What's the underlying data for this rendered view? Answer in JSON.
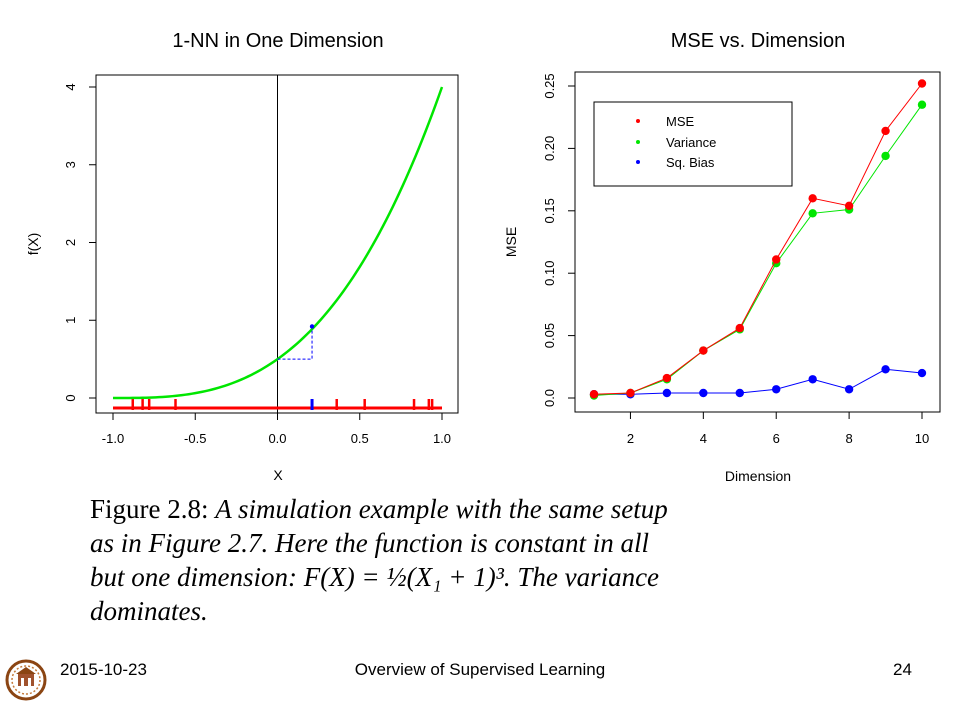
{
  "chart_data": [
    {
      "type": "line",
      "title": "1-NN in One Dimension",
      "xlabel": "X",
      "ylabel": "f(X)",
      "xlim": [
        -1.0,
        1.0
      ],
      "ylim": [
        0,
        4
      ],
      "x_ticks": [
        "-1.0",
        "-0.5",
        "0.0",
        "0.5",
        "1.0"
      ],
      "y_ticks": [
        "0",
        "1",
        "2",
        "3",
        "4"
      ],
      "function": "f(X) = 0.5*(X+1)^3",
      "curve_color": "#00e600",
      "vertical_line_x": 0.0,
      "nearest_neighbor": {
        "x": 0.21,
        "y": 0.92
      },
      "f_at_zero": 0.5,
      "rug_x_red": [
        -0.88,
        -0.82,
        -0.78,
        -0.62,
        0.36,
        0.53,
        0.83,
        0.92,
        0.94
      ],
      "rug_x_blue": [
        0.21
      ],
      "rug_color": "#ff0000",
      "nn_color": "#0000ff"
    },
    {
      "type": "line",
      "title": "MSE  vs. Dimension",
      "xlabel": "Dimension",
      "ylabel": "MSE",
      "xlim": [
        1,
        10
      ],
      "ylim": [
        0,
        0.25
      ],
      "x_ticks": [
        "2",
        "4",
        "6",
        "8",
        "10"
      ],
      "y_ticks": [
        "0.0",
        "0.05",
        "0.10",
        "0.15",
        "0.20",
        "0.25"
      ],
      "x": [
        1,
        2,
        3,
        4,
        5,
        6,
        7,
        8,
        9,
        10
      ],
      "series": [
        {
          "name": "MSE",
          "color": "#ff0000",
          "values": [
            0.003,
            0.004,
            0.016,
            0.038,
            0.056,
            0.111,
            0.16,
            0.154,
            0.214,
            0.252
          ]
        },
        {
          "name": "Variance",
          "color": "#00e600",
          "values": [
            0.002,
            0.004,
            0.015,
            0.038,
            0.055,
            0.108,
            0.148,
            0.151,
            0.194,
            0.235
          ]
        },
        {
          "name": "Sq. Bias",
          "color": "#0000ff",
          "values": [
            0.003,
            0.003,
            0.004,
            0.004,
            0.004,
            0.007,
            0.015,
            0.007,
            0.023,
            0.02
          ]
        }
      ],
      "legend_position": "top-left"
    }
  ],
  "caption": {
    "lead": "Figure 2.8:",
    "lines": [
      "A simulation example with the same setup",
      "as in Figure 2.7.  Here the function is constant in all",
      "but one dimension: F(X) = ½(X₁ + 1)³.  The variance",
      "dominates."
    ]
  },
  "footer": {
    "date": "2015-10-23",
    "title": "Overview of Supervised Learning",
    "page": "24"
  },
  "logo": {
    "icon": "university-seal-icon",
    "color": "#8b4513"
  }
}
